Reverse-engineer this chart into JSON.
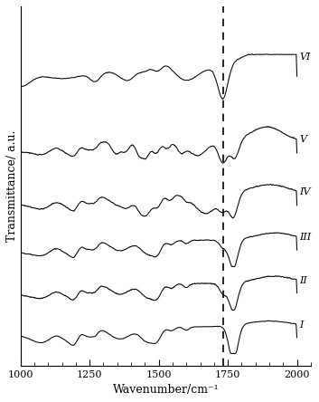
{
  "xmin": 1000,
  "xmax": 2000,
  "xlabel": "Wavenumber/cm⁻¹",
  "ylabel": "Transmittance/ a.u.",
  "dashed_line_x": 1732,
  "labels": [
    "VI",
    "V",
    "IV",
    "III",
    "II",
    "I"
  ],
  "offsets": [
    5.2,
    3.8,
    2.7,
    1.8,
    0.9,
    0.0
  ],
  "xticks": [
    1000,
    1250,
    1500,
    1750,
    2000
  ],
  "background_color": "#ffffff",
  "line_color": "#000000",
  "figsize": [
    3.53,
    4.44
  ],
  "dpi": 100
}
